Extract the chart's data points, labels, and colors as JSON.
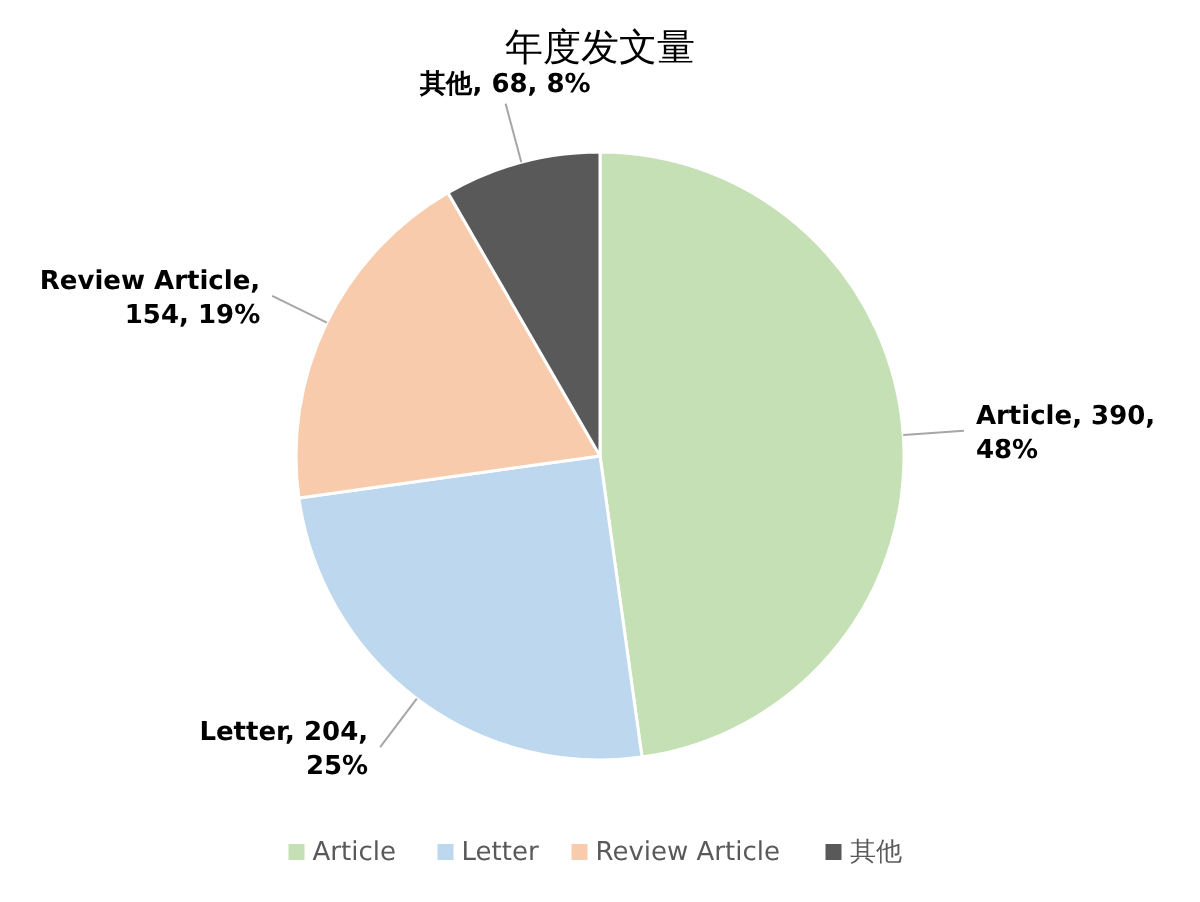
{
  "chart_data": {
    "type": "pie",
    "title": "年度发文量",
    "categories": [
      "Article",
      "Letter",
      "Review Article",
      "其他"
    ],
    "values": [
      390,
      204,
      154,
      68
    ],
    "colors": [
      "#c5e0b4",
      "#bdd7ee",
      "#f8cbad",
      "#595959"
    ],
    "value_labels": [
      "Article, 390, 48%",
      "Letter, 204, 25%",
      "Review Article, 154, 19%",
      "其他, 68, 8%"
    ],
    "legend": "bottom"
  }
}
